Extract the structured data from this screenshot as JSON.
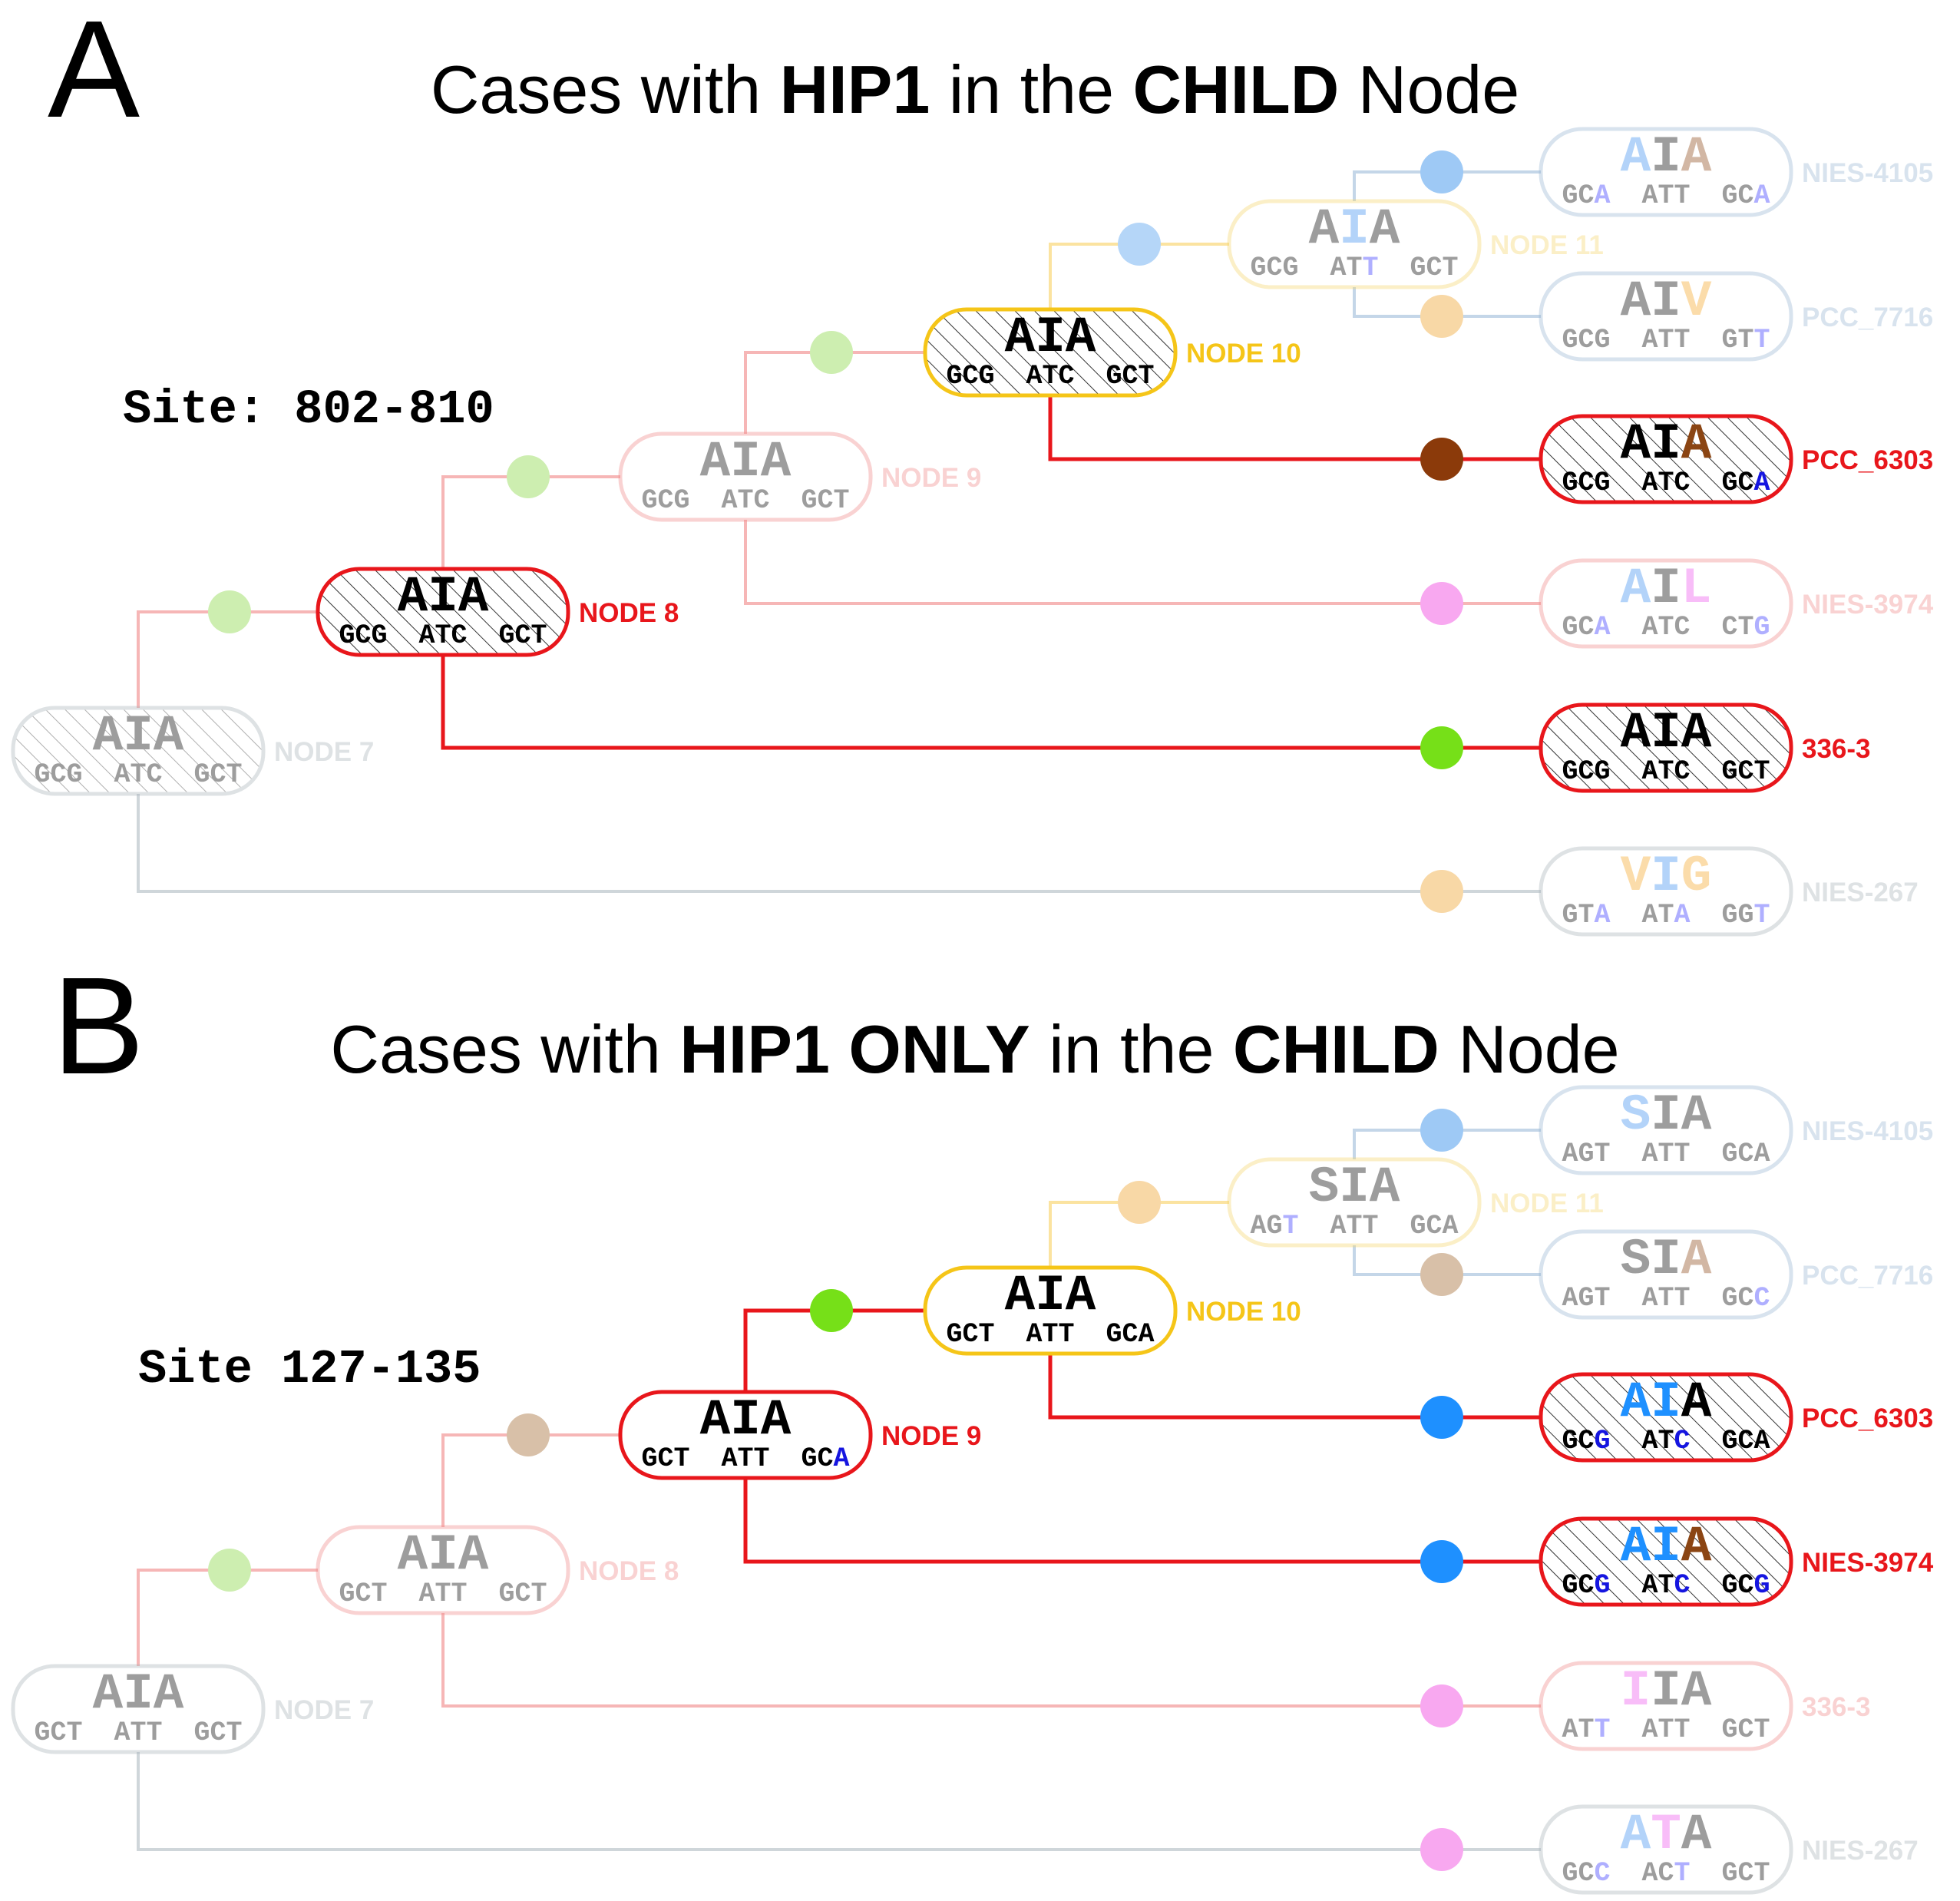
{
  "panels": [
    {
      "letter": "A",
      "title_parts": [
        {
          "text": "Cases with ",
          "bold": false
        },
        {
          "text": "HIP1",
          "bold": true
        },
        {
          "text": " in the ",
          "bold": false
        },
        {
          "text": "CHILD",
          "bold": true
        },
        {
          "text": " Node",
          "bold": false
        }
      ],
      "site_label": "Site: 802-810",
      "nodes": [
        {
          "id": "n7",
          "label": "NODE 7",
          "aa": [
            "A",
            "I",
            "A"
          ],
          "aa_colors": [
            "#000",
            "#000",
            "#000"
          ],
          "codons": [
            "GCG",
            "ATC",
            "GCT"
          ],
          "codon_last_colors": [
            "#000",
            "#000",
            "#000"
          ],
          "border": "#aab4bb",
          "hatched": true,
          "faded": true
        },
        {
          "id": "n8",
          "label": "NODE 8",
          "aa": [
            "A",
            "I",
            "A"
          ],
          "aa_colors": [
            "#000",
            "#000",
            "#000"
          ],
          "codons": [
            "GCG",
            "ATC",
            "GCT"
          ],
          "codon_last_colors": [
            "#000",
            "#000",
            "#000"
          ],
          "border": "#e8161b",
          "hatched": true,
          "faded": false
        },
        {
          "id": "n9",
          "label": "NODE 9",
          "aa": [
            "A",
            "I",
            "A"
          ],
          "aa_colors": [
            "#000",
            "#000",
            "#000"
          ],
          "codons": [
            "GCG",
            "ATC",
            "GCT"
          ],
          "codon_last_colors": [
            "#000",
            "#000",
            "#000"
          ],
          "border": "#f18a8a",
          "hatched": false,
          "faded": true
        },
        {
          "id": "n10",
          "label": "NODE 10",
          "aa": [
            "A",
            "I",
            "A"
          ],
          "aa_colors": [
            "#000",
            "#000",
            "#000"
          ],
          "codons": [
            "GCG",
            "ATC",
            "GCT"
          ],
          "codon_last_colors": [
            "#000",
            "#000",
            "#000"
          ],
          "border": "#f5c518",
          "hatched": true,
          "faded": false
        },
        {
          "id": "n11",
          "label": "NODE 11",
          "aa": [
            "A",
            "I",
            "A"
          ],
          "aa_colors": [
            "#000",
            "#3a8ef0",
            "#000"
          ],
          "codons": [
            "GCG",
            "ATT",
            "GCT"
          ],
          "codon_last_colors": [
            "#000",
            "#3030ff",
            "#000"
          ],
          "border": "#f5d66e",
          "hatched": false,
          "faded": true
        }
      ],
      "leaves": [
        {
          "id": "l1",
          "label": "NIES-4105",
          "aa": [
            "A",
            "I",
            "A"
          ],
          "aa_colors": [
            "#3a8ef0",
            "#000",
            "#8b4513"
          ],
          "codons": [
            "GCA",
            "ATT",
            "GCA"
          ],
          "codon_last_colors": [
            "#3030ff",
            "#000",
            "#3030ff"
          ],
          "border": "#9ab6d3",
          "hatched": false,
          "faded": true,
          "dot": "#9ec9f5"
        },
        {
          "id": "l2",
          "label": "PCC_7716",
          "aa": [
            "A",
            "I",
            "V"
          ],
          "aa_colors": [
            "#000",
            "#000",
            "#f5a623"
          ],
          "codons": [
            "GCG",
            "ATT",
            "GTT"
          ],
          "codon_last_colors": [
            "#000",
            "#000",
            "#3030ff"
          ],
          "border": "#9ab6d3",
          "hatched": false,
          "faded": true,
          "dot": "#f8d8a6"
        },
        {
          "id": "l3",
          "label": "PCC_6303",
          "aa": [
            "A",
            "I",
            "A"
          ],
          "aa_colors": [
            "#000",
            "#000",
            "#8b4513"
          ],
          "codons": [
            "GCG",
            "ATC",
            "GCA"
          ],
          "codon_last_colors": [
            "#000",
            "#000",
            "#1515e0"
          ],
          "border": "#e8161b",
          "hatched": true,
          "faded": false,
          "dot": "#8b3a0a"
        },
        {
          "id": "l4",
          "label": "NIES-3974",
          "aa": [
            "A",
            "I",
            "L"
          ],
          "aa_colors": [
            "#3a8ef0",
            "#000",
            "#ee55ee"
          ],
          "codons": [
            "GCA",
            "ATC",
            "CTG"
          ],
          "codon_last_colors": [
            "#3030ff",
            "#000",
            "#3030ff"
          ],
          "border": "#f18a8a",
          "hatched": false,
          "faded": true,
          "dot": "#f8a8f0"
        },
        {
          "id": "l5",
          "label": "336-3",
          "aa": [
            "A",
            "I",
            "A"
          ],
          "aa_colors": [
            "#000",
            "#000",
            "#000"
          ],
          "codons": [
            "GCG",
            "ATC",
            "GCT"
          ],
          "codon_last_colors": [
            "#000",
            "#000",
            "#000"
          ],
          "border": "#e8161b",
          "hatched": true,
          "faded": false,
          "dot": "#76e018"
        },
        {
          "id": "l6",
          "label": "NIES-267",
          "aa": [
            "V",
            "I",
            "G"
          ],
          "aa_colors": [
            "#f5a623",
            "#3a8ef0",
            "#f5a623"
          ],
          "codons": [
            "GTA",
            "ATA",
            "GGT"
          ],
          "codon_last_colors": [
            "#3030ff",
            "#3030ff",
            "#3030ff"
          ],
          "border": "#aab4bb",
          "hatched": false,
          "faded": true,
          "dot": "#f8d8a6"
        }
      ],
      "branch_dots": {
        "n8": "#cdeeb0",
        "n9": "#cdeeb0",
        "n10": "#cdeeb0",
        "n11": "#b5d6f8"
      }
    },
    {
      "letter": "B",
      "title_parts": [
        {
          "text": "Cases with ",
          "bold": false
        },
        {
          "text": "HIP1 ONLY",
          "bold": true
        },
        {
          "text": " in the ",
          "bold": false
        },
        {
          "text": "CHILD",
          "bold": true
        },
        {
          "text": " Node",
          "bold": false
        }
      ],
      "site_label": "Site 127-135",
      "nodes": [
        {
          "id": "n7",
          "label": "NODE 7",
          "aa": [
            "A",
            "I",
            "A"
          ],
          "aa_colors": [
            "#000",
            "#000",
            "#000"
          ],
          "codons": [
            "GCT",
            "ATT",
            "GCT"
          ],
          "codon_last_colors": [
            "#000",
            "#000",
            "#000"
          ],
          "border": "#aab4bb",
          "hatched": false,
          "faded": true
        },
        {
          "id": "n8",
          "label": "NODE 8",
          "aa": [
            "A",
            "I",
            "A"
          ],
          "aa_colors": [
            "#000",
            "#000",
            "#000"
          ],
          "codons": [
            "GCT",
            "ATT",
            "GCT"
          ],
          "codon_last_colors": [
            "#000",
            "#000",
            "#000"
          ],
          "border": "#f18a8a",
          "hatched": false,
          "faded": true
        },
        {
          "id": "n9",
          "label": "NODE 9",
          "aa": [
            "A",
            "I",
            "A"
          ],
          "aa_colors": [
            "#000",
            "#000",
            "#000"
          ],
          "codons": [
            "GCT",
            "ATT",
            "GCA"
          ],
          "codon_last_colors": [
            "#000",
            "#000",
            "#1515e0"
          ],
          "border": "#e8161b",
          "hatched": false,
          "faded": false
        },
        {
          "id": "n10",
          "label": "NODE 10",
          "aa": [
            "A",
            "I",
            "A"
          ],
          "aa_colors": [
            "#000",
            "#000",
            "#000"
          ],
          "codons": [
            "GCT",
            "ATT",
            "GCA"
          ],
          "codon_last_colors": [
            "#000",
            "#000",
            "#000"
          ],
          "border": "#f5c518",
          "hatched": false,
          "faded": false
        },
        {
          "id": "n11",
          "label": "NODE 11",
          "aa": [
            "S",
            "I",
            "A"
          ],
          "aa_colors": [
            "#000",
            "#000",
            "#000"
          ],
          "codons": [
            "AGT",
            "ATT",
            "GCA"
          ],
          "codon_last_colors": [
            "#3030ff",
            "#000",
            "#000"
          ],
          "border": "#f5d66e",
          "hatched": false,
          "faded": true
        }
      ],
      "leaves": [
        {
          "id": "l1",
          "label": "NIES-4105",
          "aa": [
            "S",
            "I",
            "A"
          ],
          "aa_colors": [
            "#3a8ef0",
            "#000",
            "#000"
          ],
          "codons": [
            "AGT",
            "ATT",
            "GCA"
          ],
          "codon_last_colors": [
            "#000",
            "#000",
            "#000"
          ],
          "border": "#9ab6d3",
          "hatched": false,
          "faded": true,
          "dot": "#9ec9f5"
        },
        {
          "id": "l2",
          "label": "PCC_7716",
          "aa": [
            "S",
            "I",
            "A"
          ],
          "aa_colors": [
            "#000",
            "#000",
            "#8b4513"
          ],
          "codons": [
            "AGT",
            "ATT",
            "GCC"
          ],
          "codon_last_colors": [
            "#000",
            "#000",
            "#3030ff"
          ],
          "border": "#9ab6d3",
          "hatched": false,
          "faded": true,
          "dot": "#d8c0a8"
        },
        {
          "id": "l3",
          "label": "PCC_6303",
          "aa": [
            "A",
            "I",
            "A"
          ],
          "aa_colors": [
            "#1e90ff",
            "#1e90ff",
            "#000"
          ],
          "codons": [
            "GCG",
            "ATC",
            "GCA"
          ],
          "codon_last_colors": [
            "#1515e0",
            "#1515e0",
            "#000"
          ],
          "border": "#e8161b",
          "hatched": true,
          "faded": false,
          "dot": "#1e90ff"
        },
        {
          "id": "l4",
          "label": "NIES-3974",
          "aa": [
            "A",
            "I",
            "A"
          ],
          "aa_colors": [
            "#1e90ff",
            "#1e90ff",
            "#8b4513"
          ],
          "codons": [
            "GCG",
            "ATC",
            "GCG"
          ],
          "codon_last_colors": [
            "#1515e0",
            "#1515e0",
            "#1515e0"
          ],
          "border": "#e8161b",
          "hatched": true,
          "faded": false,
          "dot": "#1e90ff"
        },
        {
          "id": "l5",
          "label": "336-3",
          "aa": [
            "I",
            "I",
            "A"
          ],
          "aa_colors": [
            "#ee55ee",
            "#000",
            "#000"
          ],
          "codons": [
            "ATT",
            "ATT",
            "GCT"
          ],
          "codon_last_colors": [
            "#3030ff",
            "#000",
            "#000"
          ],
          "border": "#f18a8a",
          "hatched": false,
          "faded": true,
          "dot": "#f8a8f0"
        },
        {
          "id": "l6",
          "label": "NIES-267",
          "aa": [
            "A",
            "T",
            "A"
          ],
          "aa_colors": [
            "#3a8ef0",
            "#ee55ee",
            "#000"
          ],
          "codons": [
            "GCC",
            "ACT",
            "GCT"
          ],
          "codon_last_colors": [
            "#3030ff",
            "#3030ff",
            "#000"
          ],
          "border": "#aab4bb",
          "hatched": false,
          "faded": true,
          "dot": "#f8a8f0"
        }
      ],
      "branch_dots": {
        "n8": "#cdeeb0",
        "n9": "#d8c0a8",
        "n10": "#76e018",
        "n11": "#f8d8a6"
      }
    }
  ]
}
